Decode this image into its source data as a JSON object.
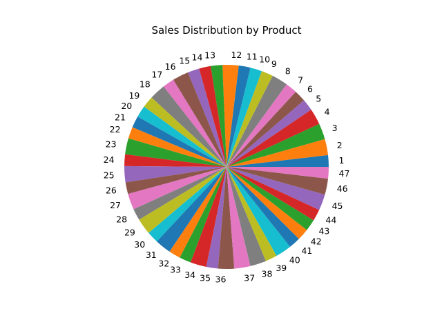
{
  "chart_data": {
    "type": "pie",
    "title": "Sales Distribution by Product",
    "categories": [
      "1",
      "2",
      "3",
      "4",
      "5",
      "6",
      "7",
      "8",
      "9",
      "10",
      "11",
      "12",
      "13",
      "14",
      "15",
      "16",
      "17",
      "18",
      "19",
      "20",
      "21",
      "22",
      "23",
      "24",
      "25",
      "26",
      "27",
      "28",
      "29",
      "30",
      "31",
      "32",
      "33",
      "34",
      "35",
      "36",
      "37",
      "38",
      "39",
      "40",
      "41",
      "42",
      "43",
      "44",
      "45",
      "46",
      "47"
    ],
    "values": [
      16,
      22,
      22,
      22,
      16,
      16,
      16,
      22,
      16,
      16,
      16,
      22,
      16,
      16,
      16,
      22,
      16,
      22,
      16,
      16,
      16,
      16,
      22,
      16,
      22,
      16,
      22,
      16,
      22,
      16,
      22,
      16,
      16,
      22,
      16,
      22,
      22,
      22,
      16,
      22,
      16,
      16,
      16,
      16,
      22,
      22,
      16
    ],
    "start_angle_deg": 0,
    "direction": "counterclockwise",
    "colors": [
      "#1f77b4",
      "#ff7f0e",
      "#2ca02c",
      "#d62728",
      "#9467bd",
      "#8c564b",
      "#e377c2",
      "#7f7f7f",
      "#bcbd22",
      "#17becf"
    ],
    "legend": "none"
  }
}
